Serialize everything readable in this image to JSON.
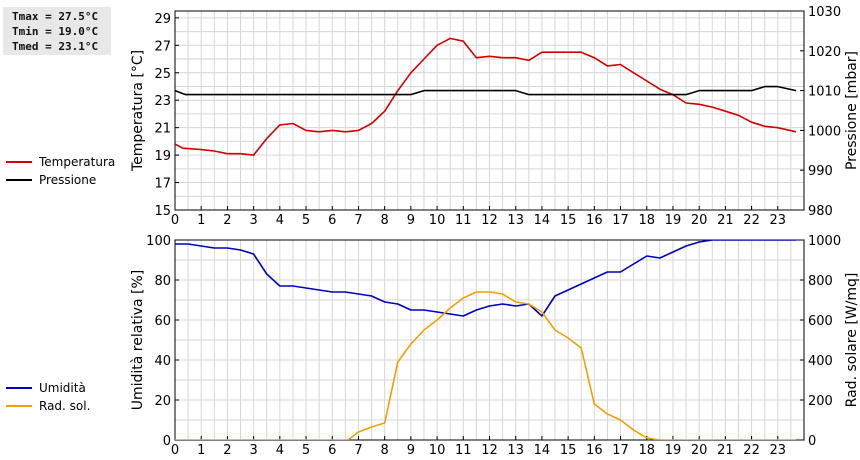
{
  "stats": {
    "tmax": "Tmax = 27.5°C",
    "tmin": "Tmin = 19.0°C",
    "tmed": "Tmed = 23.1°C"
  },
  "legend_top": [
    {
      "label": "Temperatura",
      "color": "#d40000"
    },
    {
      "label": "Pressione",
      "color": "#000000"
    }
  ],
  "legend_bottom": [
    {
      "label": "Umidità",
      "color": "#0000c0"
    },
    {
      "label": "Rad. sol.",
      "color": "#f0a000"
    }
  ],
  "chart_data": [
    {
      "type": "line",
      "ylabel": "Temperatura [°C]",
      "y2label": "Pressione [mbar]",
      "xlim": [
        0,
        24
      ],
      "ylim": [
        15,
        29.5
      ],
      "y2lim": [
        980,
        1030
      ],
      "x_ticks": [
        "0",
        "1",
        "2",
        "3",
        "4",
        "5",
        "6",
        "7",
        "8",
        "9",
        "10",
        "11",
        "12",
        "13",
        "14",
        "15",
        "16",
        "17",
        "18",
        "19",
        "20",
        "21",
        "22",
        "23"
      ],
      "y_ticks": [
        15,
        17,
        19,
        21,
        23,
        25,
        27,
        29
      ],
      "y2_ticks": [
        980,
        990,
        1000,
        1010,
        1020,
        1030
      ],
      "grid": true,
      "series": [
        {
          "name": "Temperatura",
          "axis": "left",
          "color": "#d40000",
          "points": [
            [
              0,
              19.8
            ],
            [
              0.3,
              19.5
            ],
            [
              1,
              19.4
            ],
            [
              1.5,
              19.3
            ],
            [
              2,
              19.1
            ],
            [
              2.5,
              19.1
            ],
            [
              3,
              19.0
            ],
            [
              3.5,
              20.2
            ],
            [
              4,
              21.2
            ],
            [
              4.5,
              21.3
            ],
            [
              5,
              20.8
            ],
            [
              5.5,
              20.7
            ],
            [
              6,
              20.8
            ],
            [
              6.5,
              20.7
            ],
            [
              7,
              20.8
            ],
            [
              7.5,
              21.3
            ],
            [
              8,
              22.2
            ],
            [
              8.5,
              23.7
            ],
            [
              9,
              25.0
            ],
            [
              9.5,
              26.0
            ],
            [
              10,
              27.0
            ],
            [
              10.5,
              27.5
            ],
            [
              11,
              27.3
            ],
            [
              11.5,
              26.1
            ],
            [
              12,
              26.2
            ],
            [
              12.5,
              26.1
            ],
            [
              13,
              26.1
            ],
            [
              13.5,
              25.9
            ],
            [
              14,
              26.5
            ],
            [
              14.5,
              26.5
            ],
            [
              15,
              26.5
            ],
            [
              15.5,
              26.5
            ],
            [
              16,
              26.1
            ],
            [
              16.5,
              25.5
            ],
            [
              17,
              25.6
            ],
            [
              17.5,
              25.0
            ],
            [
              18,
              24.4
            ],
            [
              18.5,
              23.8
            ],
            [
              19,
              23.4
            ],
            [
              19.5,
              22.8
            ],
            [
              20,
              22.7
            ],
            [
              20.5,
              22.5
            ],
            [
              21,
              22.2
            ],
            [
              21.5,
              21.9
            ],
            [
              22,
              21.4
            ],
            [
              22.5,
              21.1
            ],
            [
              23,
              21.0
            ],
            [
              23.7,
              20.7
            ]
          ]
        },
        {
          "name": "Pressione",
          "axis": "right",
          "color": "#000000",
          "points": [
            [
              0,
              1010
            ],
            [
              0.4,
              1009
            ],
            [
              1,
              1009
            ],
            [
              2,
              1009
            ],
            [
              3,
              1009
            ],
            [
              4,
              1009
            ],
            [
              5,
              1009
            ],
            [
              6,
              1009
            ],
            [
              7,
              1009
            ],
            [
              8,
              1009
            ],
            [
              8.5,
              1009
            ],
            [
              9,
              1009
            ],
            [
              9.5,
              1010
            ],
            [
              10,
              1010
            ],
            [
              11,
              1010
            ],
            [
              12,
              1010
            ],
            [
              13,
              1010
            ],
            [
              13.5,
              1009
            ],
            [
              14,
              1009
            ],
            [
              15,
              1009
            ],
            [
              16,
              1009
            ],
            [
              17,
              1009
            ],
            [
              18,
              1009
            ],
            [
              19,
              1009
            ],
            [
              19.5,
              1009
            ],
            [
              20,
              1010
            ],
            [
              21,
              1010
            ],
            [
              22,
              1010
            ],
            [
              22.5,
              1011
            ],
            [
              23,
              1011
            ],
            [
              23.7,
              1010
            ]
          ]
        }
      ]
    },
    {
      "type": "line",
      "ylabel": "Umidità relativa [%]",
      "y2label": "Rad. solare [W/mq]",
      "xlim": [
        0,
        24
      ],
      "ylim": [
        0,
        100
      ],
      "y2lim": [
        0,
        1000
      ],
      "x_ticks": [
        "0",
        "1",
        "2",
        "3",
        "4",
        "5",
        "6",
        "7",
        "8",
        "9",
        "10",
        "11",
        "12",
        "13",
        "14",
        "15",
        "16",
        "17",
        "18",
        "19",
        "20",
        "21",
        "22",
        "23"
      ],
      "y_ticks": [
        0,
        20,
        40,
        60,
        80,
        100
      ],
      "y2_ticks": [
        0,
        200,
        400,
        600,
        800,
        1000
      ],
      "grid": true,
      "series": [
        {
          "name": "Umidità",
          "axis": "left",
          "color": "#0000c0",
          "points": [
            [
              0,
              98
            ],
            [
              0.5,
              98
            ],
            [
              1,
              97
            ],
            [
              1.5,
              96
            ],
            [
              2,
              96
            ],
            [
              2.5,
              95
            ],
            [
              3,
              93
            ],
            [
              3.5,
              83
            ],
            [
              4,
              77
            ],
            [
              4.5,
              77
            ],
            [
              5,
              76
            ],
            [
              5.5,
              75
            ],
            [
              6,
              74
            ],
            [
              6.5,
              74
            ],
            [
              7,
              73
            ],
            [
              7.5,
              72
            ],
            [
              8,
              69
            ],
            [
              8.5,
              68
            ],
            [
              9,
              65
            ],
            [
              9.5,
              65
            ],
            [
              10,
              64
            ],
            [
              10.5,
              63
            ],
            [
              11,
              62
            ],
            [
              11.5,
              65
            ],
            [
              12,
              67
            ],
            [
              12.5,
              68
            ],
            [
              13,
              67
            ],
            [
              13.5,
              68
            ],
            [
              14,
              62
            ],
            [
              14.5,
              72
            ],
            [
              15,
              75
            ],
            [
              15.5,
              78
            ],
            [
              16,
              81
            ],
            [
              16.5,
              84
            ],
            [
              17,
              84
            ],
            [
              17.5,
              88
            ],
            [
              18,
              92
            ],
            [
              18.5,
              91
            ],
            [
              19,
              94
            ],
            [
              19.5,
              97
            ],
            [
              20,
              99
            ],
            [
              20.5,
              100
            ],
            [
              21,
              100
            ],
            [
              22,
              100
            ],
            [
              23,
              100
            ],
            [
              23.7,
              100
            ]
          ]
        },
        {
          "name": "Rad. sol.",
          "axis": "right",
          "color": "#f0a000",
          "points": [
            [
              0,
              0
            ],
            [
              1,
              0
            ],
            [
              2,
              0
            ],
            [
              3,
              0
            ],
            [
              4,
              0
            ],
            [
              5,
              0
            ],
            [
              6,
              0
            ],
            [
              6.6,
              0
            ],
            [
              7,
              40
            ],
            [
              7.5,
              65
            ],
            [
              8,
              85
            ],
            [
              8.5,
              390
            ],
            [
              9,
              480
            ],
            [
              9.5,
              550
            ],
            [
              10,
              600
            ],
            [
              10.5,
              660
            ],
            [
              11,
              710
            ],
            [
              11.5,
              740
            ],
            [
              12,
              740
            ],
            [
              12.5,
              730
            ],
            [
              13,
              690
            ],
            [
              13.5,
              680
            ],
            [
              14,
              640
            ],
            [
              14.5,
              550
            ],
            [
              15,
              510
            ],
            [
              15.5,
              460
            ],
            [
              16,
              180
            ],
            [
              16.5,
              130
            ],
            [
              17,
              100
            ],
            [
              17.5,
              50
            ],
            [
              18,
              10
            ],
            [
              18.5,
              0
            ],
            [
              19,
              0
            ],
            [
              20,
              0
            ],
            [
              21,
              0
            ],
            [
              22,
              0
            ],
            [
              23,
              0
            ],
            [
              23.7,
              0
            ]
          ]
        }
      ]
    }
  ]
}
